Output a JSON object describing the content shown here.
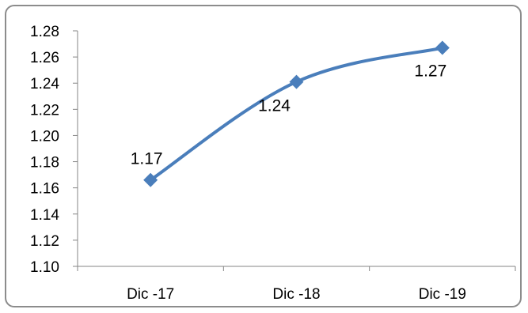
{
  "chart_data": {
    "type": "line",
    "title": "",
    "xlabel": "",
    "ylabel": "",
    "categories": [
      "Dic -17",
      "Dic -18",
      "Dic -19"
    ],
    "series": [
      {
        "values": [
          1.166,
          1.241,
          1.267
        ],
        "labels": [
          "1.17",
          "1.24",
          "1.27"
        ],
        "color": "#4a7ebb",
        "marker": "diamond",
        "smooth": true
      }
    ],
    "ylim": [
      1.1,
      1.28
    ],
    "yticks": [
      "1.10",
      "1.12",
      "1.14",
      "1.16",
      "1.18",
      "1.20",
      "1.22",
      "1.24",
      "1.26",
      "1.28"
    ],
    "grid": false,
    "legend": "none"
  }
}
